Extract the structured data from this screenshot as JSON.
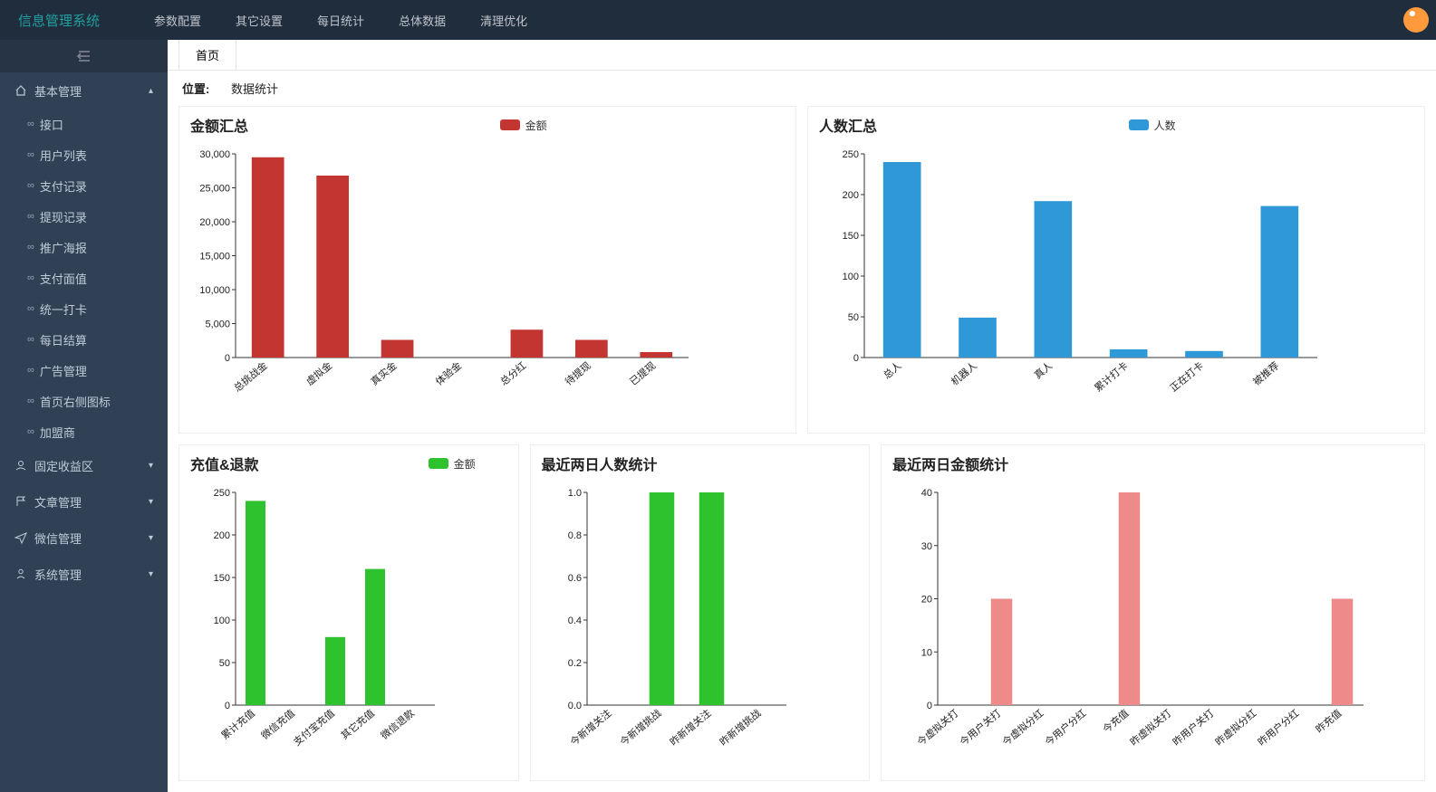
{
  "app_title": "信息管理系统",
  "topnav": [
    "参数配置",
    "其它设置",
    "每日统计",
    "总体数据",
    "清理优化"
  ],
  "sidebar": {
    "groups": [
      {
        "label": "基本管理",
        "icon": "home",
        "expanded": true,
        "items": [
          "接口",
          "用户列表",
          "支付记录",
          "提现记录",
          "推广海报",
          "支付面值",
          "统一打卡",
          "每日结算",
          "广告管理",
          "首页右侧图标",
          "加盟商"
        ]
      },
      {
        "label": "固定收益区",
        "icon": "user",
        "expanded": false,
        "items": []
      },
      {
        "label": "文章管理",
        "icon": "flag",
        "expanded": false,
        "items": []
      },
      {
        "label": "微信管理",
        "icon": "send",
        "expanded": false,
        "items": []
      },
      {
        "label": "系统管理",
        "icon": "person",
        "expanded": false,
        "items": []
      }
    ]
  },
  "tab_label": "首页",
  "breadcrumb": {
    "label": "位置:",
    "value": "数据统计"
  },
  "charts": {
    "amount_summary": {
      "title": "金额汇总",
      "legend": "金额",
      "color": "#c23531",
      "categories": [
        "总挑战金",
        "虚拟金",
        "真实金",
        "体验金",
        "总分红",
        "待提现",
        "已提现"
      ],
      "values": [
        29500,
        26800,
        2600,
        0,
        4100,
        2600,
        800
      ],
      "ylim": [
        0,
        30000
      ],
      "ytick_step": 5000
    },
    "people_summary": {
      "title": "人数汇总",
      "legend": "人数",
      "color": "#2f98d6",
      "categories": [
        "总人",
        "机器人",
        "真人",
        "累计打卡",
        "正在打卡",
        "被推荐"
      ],
      "values": [
        240,
        49,
        192,
        10,
        8,
        186
      ],
      "ylim": [
        0,
        250
      ],
      "ytick_step": 50
    },
    "recharge_refund": {
      "title": "充值&退款",
      "legend": "金额",
      "color": "#2ec22e",
      "categories": [
        "累计充值",
        "微信充值",
        "支付宝充值",
        "其它充值",
        "微信退款"
      ],
      "values": [
        240,
        0,
        80,
        160,
        0
      ],
      "ylim": [
        0,
        250
      ],
      "ytick_step": 50
    },
    "two_day_people": {
      "title": "最近两日人数统计",
      "color": "#2ec22e",
      "categories": [
        "今新增关注",
        "今新增挑战",
        "昨新增关注",
        "昨新增挑战"
      ],
      "values": [
        0,
        1,
        1,
        0
      ],
      "ylim": [
        0,
        1
      ],
      "ytick_step": 0.2
    },
    "two_day_amount": {
      "title": "最近两日金额统计",
      "color": "#ee8a8a",
      "categories": [
        "今虚拟关打",
        "今用户关打",
        "今虚拟分红",
        "今用户分红",
        "今充值",
        "昨虚拟关打",
        "昨用户关打",
        "昨虚拟分红",
        "昨用户分红",
        "昨充值"
      ],
      "values": [
        0,
        20,
        0,
        0,
        40,
        0,
        0,
        0,
        0,
        20
      ],
      "ylim": [
        0,
        40
      ],
      "ytick_step": 10
    }
  }
}
